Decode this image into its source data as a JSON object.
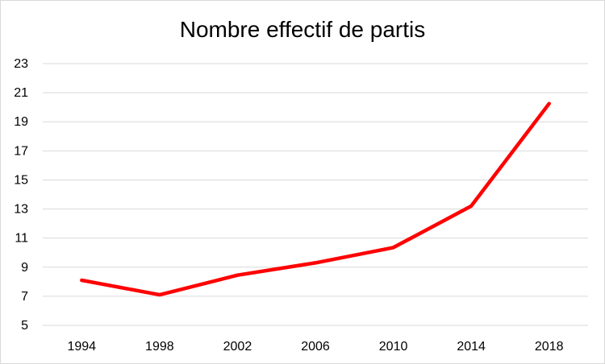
{
  "chart_data": {
    "type": "line",
    "title": "Nombre effectif de partis",
    "xlabel": "",
    "ylabel": "",
    "categories": [
      "1994",
      "1998",
      "2002",
      "2006",
      "2010",
      "2014",
      "2018"
    ],
    "series": [
      {
        "values": [
          8.1,
          7.1,
          8.45,
          9.3,
          10.35,
          13.2,
          20.25
        ]
      }
    ],
    "ylim": [
      5,
      23
    ],
    "yticks": [
      5,
      7,
      9,
      11,
      13,
      15,
      17,
      19,
      21,
      23
    ],
    "grid": true,
    "line_color": "#ff0000",
    "grid_color": "#d9d9d9"
  }
}
